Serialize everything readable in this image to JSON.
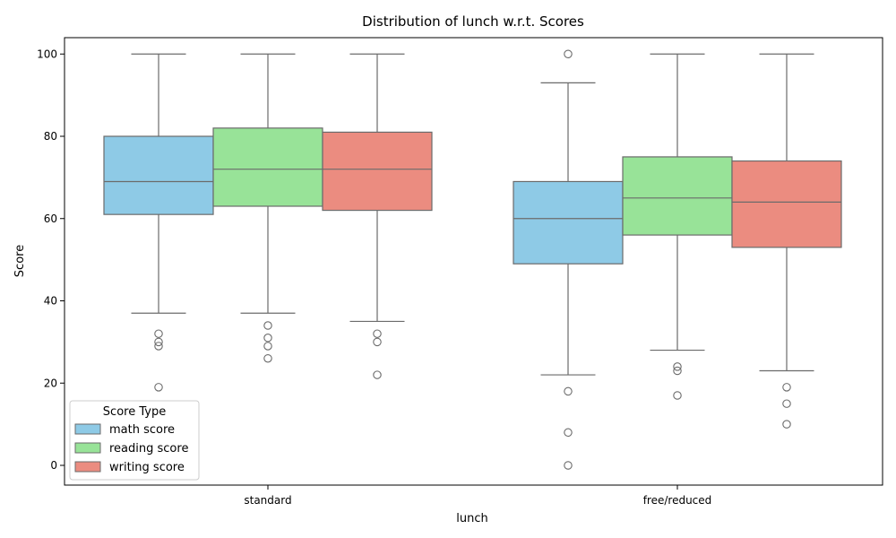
{
  "chart_data": {
    "type": "box",
    "title": "Distribution of lunch w.r.t. Scores",
    "xlabel": "lunch",
    "ylabel": "Score",
    "ylim": [
      -5,
      105
    ],
    "yticks": [
      0,
      20,
      40,
      60,
      80,
      100
    ],
    "categories": [
      "standard",
      "free/reduced"
    ],
    "legend": {
      "title": "Score Type",
      "placement": "lower-left"
    },
    "grid": false,
    "series": [
      {
        "name": "math score",
        "color": "#8ecae6",
        "boxes": [
          {
            "category": "standard",
            "whisker_low": 37,
            "q1": 61,
            "median": 69,
            "q3": 80,
            "whisker_high": 100,
            "outliers": [
              32,
              30,
              29,
              19
            ]
          },
          {
            "category": "free/reduced",
            "whisker_low": 22,
            "q1": 49,
            "median": 60,
            "q3": 69,
            "whisker_high": 93,
            "outliers": [
              100,
              18,
              8,
              0
            ]
          }
        ]
      },
      {
        "name": "reading score",
        "color": "#98e398",
        "boxes": [
          {
            "category": "standard",
            "whisker_low": 37,
            "q1": 63,
            "median": 72,
            "q3": 82,
            "whisker_high": 100,
            "outliers": [
              34,
              31,
              29,
              26
            ]
          },
          {
            "category": "free/reduced",
            "whisker_low": 28,
            "q1": 56,
            "median": 65,
            "q3": 75,
            "whisker_high": 100,
            "outliers": [
              24,
              23,
              17
            ]
          }
        ]
      },
      {
        "name": "writing score",
        "color": "#eb8c80",
        "boxes": [
          {
            "category": "standard",
            "whisker_low": 35,
            "q1": 62,
            "median": 72,
            "q3": 81,
            "whisker_high": 100,
            "outliers": [
              32,
              30,
              22
            ]
          },
          {
            "category": "free/reduced",
            "whisker_low": 23,
            "q1": 53,
            "median": 64,
            "q3": 74,
            "whisker_high": 100,
            "outliers": [
              19,
              15,
              10
            ]
          }
        ]
      }
    ]
  }
}
